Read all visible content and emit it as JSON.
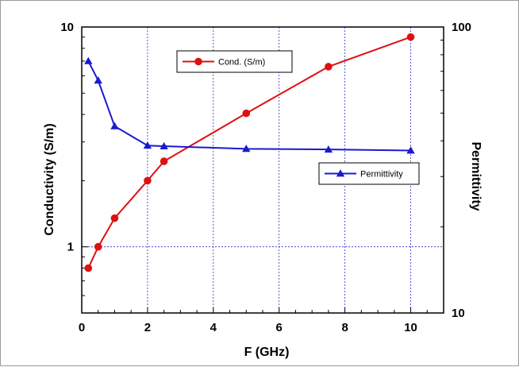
{
  "chart_data": {
    "type": "line",
    "xlabel": "F (GHz)",
    "ylabel_left": "Conductivity  (S/m)",
    "ylabel_right": "Permittivity",
    "x_ticks": [
      "0",
      "2",
      "4",
      "6",
      "8",
      "10"
    ],
    "x_range": [
      0,
      11
    ],
    "y_left_scale": "log",
    "y_left_range": [
      0.5,
      10
    ],
    "y_left_ticks": [
      "10",
      "1"
    ],
    "y_right_scale": "log",
    "y_right_range": [
      10,
      100
    ],
    "y_right_ticks": [
      "100",
      "10"
    ],
    "grid": "dashed blue gridlines at x = 2, 4, 6, 8, 10 and at conductivity = 1",
    "series": [
      {
        "name": "Cond. (S/m)",
        "axis": "left",
        "color": "#dd1111",
        "marker": "circle",
        "x": [
          0.2,
          0.5,
          1,
          2,
          2.5,
          5,
          7.5,
          10
        ],
        "y": [
          0.8,
          1.0,
          1.35,
          2.0,
          2.45,
          4.05,
          6.6,
          9.0
        ]
      },
      {
        "name": "Permittivity",
        "axis": "right",
        "color": "#1a1ad0",
        "marker": "triangle",
        "x": [
          0.2,
          0.5,
          1,
          2,
          2.5,
          5,
          7.5,
          10
        ],
        "y": [
          76,
          65,
          45,
          38.5,
          38.3,
          37.5,
          37.3,
          37.0
        ]
      }
    ],
    "legend": [
      {
        "series": 0,
        "placement": "upper-center"
      },
      {
        "series": 1,
        "placement": "center-right"
      }
    ]
  }
}
